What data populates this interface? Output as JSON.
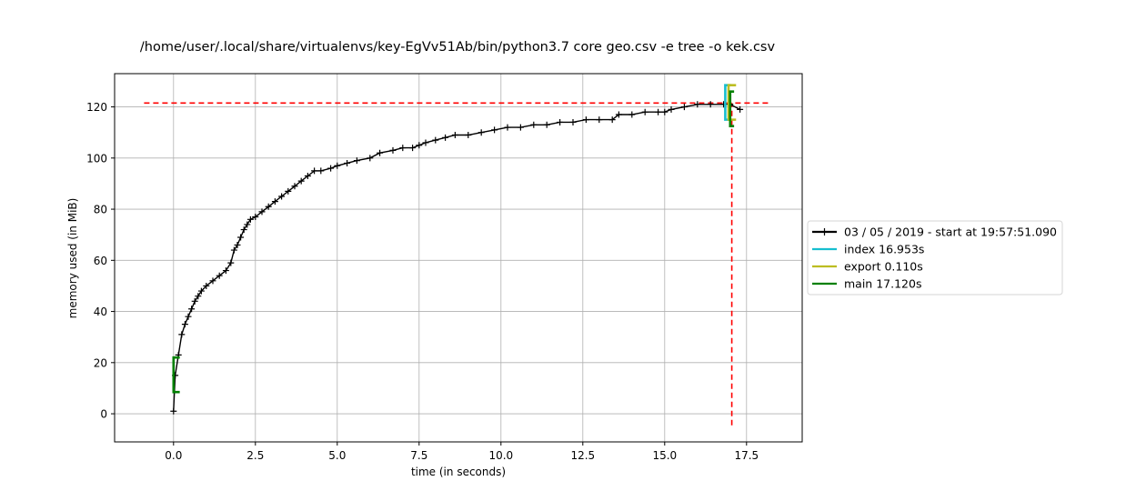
{
  "chart_data": {
    "type": "line",
    "title": "/home/user/.local/share/virtualenvs/key-EgVv51Ab/bin/python3.7 core geo.csv -e tree -o kek.csv",
    "xlabel": "time (in seconds)",
    "ylabel": "memory used (in MiB)",
    "xlim": [
      -1.8,
      19.2
    ],
    "ylim": [
      -11,
      133
    ],
    "xticks": [
      0.0,
      2.5,
      5.0,
      7.5,
      10.0,
      12.5,
      15.0,
      17.5
    ],
    "xtick_labels": [
      "0.0",
      "2.5",
      "5.0",
      "7.5",
      "10.0",
      "12.5",
      "15.0",
      "17.5"
    ],
    "yticks": [
      0,
      20,
      40,
      60,
      80,
      100,
      120
    ],
    "ytick_labels": [
      "0",
      "20",
      "40",
      "60",
      "80",
      "100",
      "120"
    ],
    "grid": true,
    "legend_position": "right-outside",
    "series": [
      {
        "name": "03 / 05 / 2019 - start at 19:57:51.090",
        "color": "#000000",
        "marker": "plus",
        "x": [
          0.0,
          0.05,
          0.15,
          0.25,
          0.35,
          0.45,
          0.55,
          0.65,
          0.75,
          0.85,
          1.0,
          1.2,
          1.4,
          1.6,
          1.75,
          1.85,
          1.95,
          2.05,
          2.15,
          2.25,
          2.35,
          2.5,
          2.7,
          2.9,
          3.1,
          3.3,
          3.5,
          3.7,
          3.9,
          4.1,
          4.3,
          4.5,
          4.8,
          5.0,
          5.3,
          5.6,
          6.0,
          6.3,
          6.7,
          7.0,
          7.3,
          7.5,
          7.7,
          8.0,
          8.3,
          8.6,
          9.0,
          9.4,
          9.8,
          10.2,
          10.6,
          11.0,
          11.4,
          11.8,
          12.2,
          12.6,
          13.0,
          13.4,
          13.6,
          14.0,
          14.4,
          14.8,
          15.0,
          15.2,
          15.6,
          16.0,
          16.4,
          16.8,
          17.0,
          17.3
        ],
        "y": [
          1,
          15,
          23,
          31,
          35,
          38,
          41,
          44,
          46,
          48,
          50,
          52,
          54,
          56,
          59,
          64,
          66,
          69,
          72,
          74,
          76,
          77,
          79,
          81,
          83,
          85,
          87,
          89,
          91,
          93,
          95,
          95,
          96,
          97,
          98,
          99,
          100,
          102,
          103,
          104,
          104,
          105,
          106,
          107,
          108,
          109,
          109,
          110,
          111,
          112,
          112,
          113,
          113,
          114,
          114,
          115,
          115,
          115,
          117,
          117,
          118,
          118,
          118,
          119,
          120,
          121,
          121,
          121,
          121,
          119
        ]
      },
      {
        "name": "index 16.953s",
        "color": "#17becf"
      },
      {
        "name": "export 0.110s",
        "color": "#bcbd22"
      },
      {
        "name": "main 17.120s",
        "color": "#008000"
      }
    ],
    "bracket_markers": [
      {
        "series": "main 17.120s",
        "x_start": 0.0,
        "x_end": 0.19,
        "y_low": 8.5,
        "y_high": 22,
        "color": "#008000"
      },
      {
        "series": "index 16.953s",
        "x_start": 16.85,
        "x_end": 17.03,
        "y_low": 115,
        "y_high": 128.5,
        "color": "#17becf"
      },
      {
        "series": "export 0.110s",
        "x_start": 16.95,
        "x_end": 17.18,
        "y_low": 115,
        "y_high": 128.5,
        "color": "#bcbd22"
      },
      {
        "series": "main 17.120s",
        "x_start": 17.0,
        "x_end": 17.12,
        "y_low": 112.5,
        "y_high": 126,
        "color": "#008000"
      }
    ],
    "reference_lines": [
      {
        "orientation": "horizontal",
        "y": 121.5,
        "x_from": -0.9,
        "x_to": 18.2,
        "color": "#ff0000",
        "style": "dashed"
      },
      {
        "orientation": "vertical",
        "x": 17.05,
        "y_from": -4.5,
        "y_to": 121.5,
        "color": "#ff0000",
        "style": "dashed"
      }
    ]
  }
}
